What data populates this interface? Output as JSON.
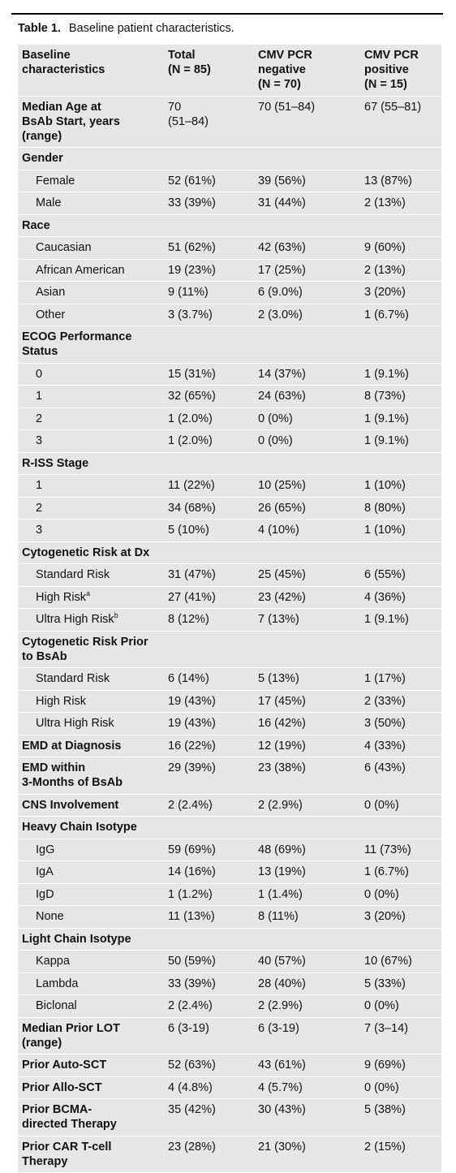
{
  "header": {
    "label": "Table 1.",
    "caption": "Baseline patient characteristics."
  },
  "table": {
    "columns": [
      [
        "Baseline",
        "characteristics"
      ],
      [
        "Total",
        "(N = 85)"
      ],
      [
        "CMV PCR",
        "negative",
        "(N = 70)"
      ],
      [
        "CMV PCR",
        "positive",
        "(N = 15)"
      ]
    ],
    "rows": [
      {
        "label": [
          "Median Age at",
          "BsAb Start, years",
          "(range)"
        ],
        "values": [
          [
            "70",
            "(51–84)"
          ],
          "70 (51–84)",
          "67 (55–81)"
        ]
      },
      {
        "label": "Gender",
        "items": [
          {
            "label": "Female",
            "values": [
              "52 (61%)",
              "39 (56%)",
              "13 (87%)"
            ]
          },
          {
            "label": "Male",
            "values": [
              "33 (39%)",
              "31 (44%)",
              "2 (13%)"
            ]
          }
        ]
      },
      {
        "label": "Race",
        "items": [
          {
            "label": "Caucasian",
            "values": [
              "51 (62%)",
              "42 (63%)",
              "9 (60%)"
            ]
          },
          {
            "label": "African American",
            "values": [
              "19 (23%)",
              "17 (25%)",
              "2 (13%)"
            ]
          },
          {
            "label": "Asian",
            "values": [
              "9 (11%)",
              "6 (9.0%)",
              "3 (20%)"
            ]
          },
          {
            "label": "Other",
            "values": [
              "3 (3.7%)",
              "2 (3.0%)",
              "1 (6.7%)"
            ]
          }
        ]
      },
      {
        "label": "ECOG Performance Status",
        "items": [
          {
            "label": "0",
            "values": [
              "15 (31%)",
              "14 (37%)",
              "1 (9.1%)"
            ]
          },
          {
            "label": "1",
            "values": [
              "32 (65%)",
              "24 (63%)",
              "8 (73%)"
            ]
          },
          {
            "label": "2",
            "values": [
              "1 (2.0%)",
              "0 (0%)",
              "1 (9.1%)"
            ]
          },
          {
            "label": "3",
            "values": [
              "1 (2.0%)",
              "0 (0%)",
              "1 (9.1%)"
            ]
          }
        ]
      },
      {
        "label": "R-ISS Stage",
        "items": [
          {
            "label": "1",
            "values": [
              "11 (22%)",
              "10 (25%)",
              "1 (10%)"
            ]
          },
          {
            "label": "2",
            "values": [
              "34 (68%)",
              "26 (65%)",
              "8 (80%)"
            ]
          },
          {
            "label": "3",
            "values": [
              "5 (10%)",
              "4 (10%)",
              "1 (10%)"
            ]
          }
        ]
      },
      {
        "label": "Cytogenetic Risk at Dx",
        "items": [
          {
            "label": "Standard Risk",
            "values": [
              "31 (47%)",
              "25 (45%)",
              "6 (55%)"
            ]
          },
          {
            "label": "High Risk",
            "note": "a",
            "values": [
              "27 (41%)",
              "23 (42%)",
              "4 (36%)"
            ]
          },
          {
            "label": "Ultra High Risk",
            "note": "b",
            "values": [
              "8 (12%)",
              "7 (13%)",
              "1 (9.1%)"
            ]
          }
        ]
      },
      {
        "label": "Cytogenetic Risk Prior to BsAb",
        "items": [
          {
            "label": "Standard Risk",
            "values": [
              "6 (14%)",
              "5 (13%)",
              "1 (17%)"
            ]
          },
          {
            "label": "High Risk",
            "values": [
              "19 (43%)",
              "17 (45%)",
              "2 (33%)"
            ]
          },
          {
            "label": "Ultra High Risk",
            "values": [
              "19 (43%)",
              "16 (42%)",
              "3 (50%)"
            ]
          }
        ]
      },
      {
        "label": "EMD at Diagnosis",
        "values": [
          "16 (22%)",
          "12 (19%)",
          "4 (33%)"
        ]
      },
      {
        "label": [
          "EMD within",
          "3-Months of BsAb"
        ],
        "values": [
          "29 (39%)",
          "23 (38%)",
          "6 (43%)"
        ]
      },
      {
        "label": "CNS Involvement",
        "values": [
          "2 (2.4%)",
          "2 (2.9%)",
          "0 (0%)"
        ]
      },
      {
        "label": "Heavy Chain Isotype",
        "items": [
          {
            "label": "IgG",
            "values": [
              "59 (69%)",
              "48 (69%)",
              "11 (73%)"
            ]
          },
          {
            "label": "IgA",
            "values": [
              "14 (16%)",
              "13 (19%)",
              "1 (6.7%)"
            ]
          },
          {
            "label": "IgD",
            "values": [
              "1 (1.2%)",
              "1 (1.4%)",
              "0 (0%)"
            ]
          },
          {
            "label": "None",
            "values": [
              "11 (13%)",
              "8 (11%)",
              "3 (20%)"
            ]
          }
        ]
      },
      {
        "label": "Light Chain Isotype",
        "items": [
          {
            "label": "Kappa",
            "values": [
              "50 (59%)",
              "40 (57%)",
              "10 (67%)"
            ]
          },
          {
            "label": "Lambda",
            "values": [
              "33 (39%)",
              "28 (40%)",
              "5 (33%)"
            ]
          },
          {
            "label": "Biclonal",
            "values": [
              "2 (2.4%)",
              "2 (2.9%)",
              "0 (0%)"
            ]
          }
        ]
      },
      {
        "label": [
          "Median Prior LOT",
          "(range)"
        ],
        "values": [
          "6 (3-19)",
          "6 (3-19)",
          "7 (3–14)"
        ]
      },
      {
        "label": "Prior Auto-SCT",
        "values": [
          "52 (63%)",
          "43 (61%)",
          "9 (69%)"
        ]
      },
      {
        "label": "Prior Allo-SCT",
        "values": [
          "4 (4.8%)",
          "4 (5.7%)",
          "0 (0%)"
        ]
      },
      {
        "label": [
          "Prior BCMA-",
          "directed Therapy"
        ],
        "values": [
          "35 (42%)",
          "30 (43%)",
          "5 (38%)"
        ]
      },
      {
        "label": [
          "Prior CAR T-cell",
          "Therapy"
        ],
        "values": [
          "23 (28%)",
          "21 (30%)",
          "2 (15%)"
        ]
      }
    ]
  }
}
